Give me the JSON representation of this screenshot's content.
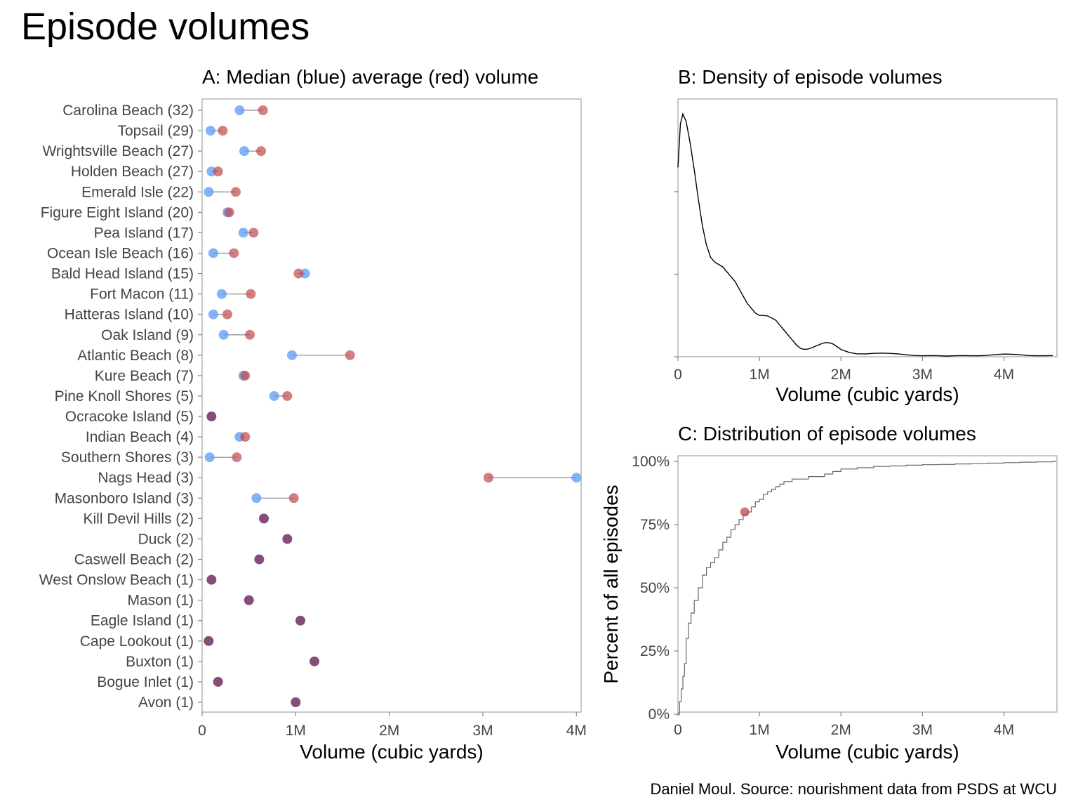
{
  "title": "Episode volumes",
  "caption": "Daniel Moul. Source: nourishment data from PSDS at WCU",
  "colors": {
    "median": "#5b9bf2",
    "average": "#c0484c",
    "overlap": "#6f2f60",
    "line": "#888888",
    "frame": "#aaaaaa"
  },
  "chart_data": [
    {
      "type": "scatter",
      "title": "A: Median (blue) average (red) volume",
      "xlabel": "Volume (cubic yards)",
      "ylabel": "",
      "xlim": [
        0,
        4050000
      ],
      "x_ticks": [
        0,
        1000000,
        2000000,
        3000000,
        4000000
      ],
      "x_tick_labels": [
        "0",
        "1M",
        "2M",
        "3M",
        "4M"
      ],
      "categories": [
        "Carolina Beach (32)",
        "Topsail (29)",
        "Wrightsville Beach (27)",
        "Holden Beach (27)",
        "Emerald Isle (22)",
        "Figure Eight Island (20)",
        "Pea Island (17)",
        "Ocean Isle Beach (16)",
        "Bald Head Island (15)",
        "Fort Macon (11)",
        "Hatteras Island (10)",
        "Oak Island (9)",
        "Atlantic Beach (8)",
        "Kure Beach (7)",
        "Pine Knoll Shores (5)",
        "Ocracoke Island (5)",
        "Indian Beach (4)",
        "Southern Shores (3)",
        "Nags Head (3)",
        "Masonboro Island (3)",
        "Kill Devil Hills (2)",
        "Duck (2)",
        "Caswell Beach (2)",
        "West Onslow Beach (1)",
        "Mason (1)",
        "Eagle Island (1)",
        "Cape Lookout (1)",
        "Buxton (1)",
        "Bogue Inlet (1)",
        "Avon (1)"
      ],
      "series": [
        {
          "name": "median",
          "values": [
            400000,
            90000,
            450000,
            100000,
            70000,
            270000,
            440000,
            120000,
            1100000,
            210000,
            120000,
            230000,
            960000,
            440000,
            770000,
            100000,
            400000,
            80000,
            4000000,
            580000,
            660000,
            910000,
            610000,
            100000,
            500000,
            1050000,
            70000,
            1200000,
            170000,
            1000000
          ]
        },
        {
          "name": "average",
          "values": [
            650000,
            220000,
            630000,
            170000,
            360000,
            290000,
            550000,
            340000,
            1030000,
            520000,
            270000,
            510000,
            1580000,
            460000,
            910000,
            100000,
            460000,
            370000,
            3060000,
            980000,
            660000,
            910000,
            610000,
            100000,
            500000,
            1050000,
            70000,
            1200000,
            170000,
            1000000
          ]
        }
      ]
    },
    {
      "type": "line",
      "title": "B: Density of episode volumes",
      "xlabel": "Volume (cubic yards)",
      "ylabel": "",
      "xlim": [
        0,
        4650000
      ],
      "ylim": [
        0,
        1.05
      ],
      "x_ticks": [
        0,
        1000000,
        2000000,
        3000000,
        4000000
      ],
      "x_tick_labels": [
        "0",
        "1M",
        "2M",
        "3M",
        "4M"
      ],
      "y_ticks": [
        0,
        0.34,
        0.68
      ],
      "x": [
        0,
        30000,
        60000,
        100000,
        150000,
        200000,
        250000,
        300000,
        350000,
        400000,
        450000,
        500000,
        550000,
        600000,
        650000,
        700000,
        750000,
        800000,
        850000,
        900000,
        950000,
        1000000,
        1050000,
        1100000,
        1150000,
        1200000,
        1250000,
        1300000,
        1350000,
        1400000,
        1450000,
        1500000,
        1550000,
        1600000,
        1650000,
        1700000,
        1750000,
        1800000,
        1850000,
        1900000,
        1950000,
        2000000,
        2100000,
        2200000,
        2300000,
        2400000,
        2500000,
        2600000,
        2700000,
        2800000,
        2900000,
        3000000,
        3100000,
        3200000,
        3300000,
        3400000,
        3500000,
        3600000,
        3700000,
        3800000,
        3900000,
        4000000,
        4100000,
        4200000,
        4300000,
        4400000,
        4500000,
        4600000
      ],
      "y": [
        0.78,
        0.96,
        1.0,
        0.97,
        0.88,
        0.77,
        0.65,
        0.54,
        0.46,
        0.41,
        0.39,
        0.38,
        0.37,
        0.35,
        0.33,
        0.31,
        0.28,
        0.25,
        0.22,
        0.2,
        0.18,
        0.17,
        0.17,
        0.168,
        0.16,
        0.15,
        0.13,
        0.11,
        0.09,
        0.07,
        0.05,
        0.035,
        0.03,
        0.032,
        0.038,
        0.045,
        0.052,
        0.058,
        0.058,
        0.053,
        0.042,
        0.03,
        0.018,
        0.012,
        0.012,
        0.014,
        0.015,
        0.014,
        0.012,
        0.008,
        0.005,
        0.004,
        0.005,
        0.004,
        0.003,
        0.004,
        0.005,
        0.004,
        0.004,
        0.006,
        0.009,
        0.011,
        0.01,
        0.008,
        0.005,
        0.004,
        0.004,
        0.005
      ]
    },
    {
      "type": "line",
      "title": "C: Distribution of episode volumes",
      "xlabel": "Volume (cubic yards)",
      "ylabel": "Percent of all episodes",
      "xlim": [
        0,
        4650000
      ],
      "ylim": [
        0,
        1.02
      ],
      "x_ticks": [
        0,
        1000000,
        2000000,
        3000000,
        4000000
      ],
      "x_tick_labels": [
        "0",
        "1M",
        "2M",
        "3M",
        "4M"
      ],
      "y_ticks": [
        0,
        0.25,
        0.5,
        0.75,
        1.0
      ],
      "y_tick_labels": [
        "0%",
        "25%",
        "50%",
        "75%",
        "100%"
      ],
      "x": [
        0,
        20000,
        40000,
        60000,
        80000,
        100000,
        130000,
        160000,
        200000,
        250000,
        300000,
        350000,
        400000,
        450000,
        500000,
        550000,
        600000,
        650000,
        700000,
        750000,
        800000,
        850000,
        900000,
        950000,
        1000000,
        1050000,
        1100000,
        1150000,
        1200000,
        1250000,
        1300000,
        1400000,
        1500000,
        1600000,
        1700000,
        1800000,
        1900000,
        2000000,
        2200000,
        2400000,
        2600000,
        2800000,
        3000000,
        3200000,
        3400000,
        3600000,
        3800000,
        4000000,
        4200000,
        4400000,
        4600000
      ],
      "y": [
        0,
        0.05,
        0.1,
        0.15,
        0.2,
        0.3,
        0.36,
        0.4,
        0.45,
        0.5,
        0.55,
        0.58,
        0.6,
        0.62,
        0.65,
        0.68,
        0.7,
        0.73,
        0.75,
        0.77,
        0.79,
        0.8,
        0.82,
        0.84,
        0.85,
        0.87,
        0.88,
        0.89,
        0.9,
        0.91,
        0.92,
        0.93,
        0.93,
        0.94,
        0.94,
        0.95,
        0.96,
        0.97,
        0.975,
        0.98,
        0.982,
        0.985,
        0.987,
        0.988,
        0.99,
        0.991,
        0.993,
        0.995,
        0.997,
        0.998,
        1.0
      ],
      "highlight": {
        "x": 820000,
        "y": 0.8,
        "label": ""
      }
    }
  ]
}
